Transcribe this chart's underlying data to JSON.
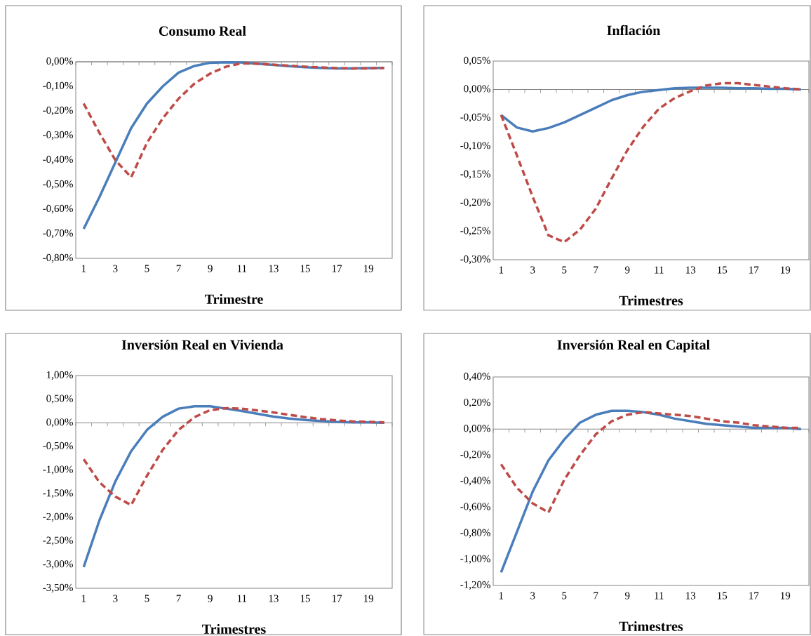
{
  "chart_data": [
    {
      "type": "line",
      "title": "Consumo Real",
      "xlabel": "Trimestre",
      "categories": [
        "1",
        null,
        "3",
        null,
        "5",
        null,
        "7",
        null,
        "9",
        null,
        "11",
        null,
        "13",
        null,
        "15",
        null,
        "17",
        null,
        "19",
        null
      ],
      "ylim": [
        -0.8,
        0
      ],
      "yticks": [
        {
          "value": 0,
          "label": "0,00%"
        },
        {
          "value": -0.1,
          "label": "-0,10%"
        },
        {
          "value": -0.2,
          "label": "-0,20%"
        },
        {
          "value": -0.3,
          "label": "-0,30%"
        },
        {
          "value": -0.4,
          "label": "-0,40%"
        },
        {
          "value": -0.5,
          "label": "-0,50%"
        },
        {
          "value": -0.6,
          "label": "-0,60%"
        },
        {
          "value": -0.7,
          "label": "-0,70%"
        },
        {
          "value": -0.8,
          "label": "-0,80%"
        }
      ],
      "series": [
        {
          "color": "#4a7ebb",
          "line_style": "solid",
          "values": [
            -0.68,
            -0.55,
            -0.41,
            -0.27,
            -0.17,
            -0.1,
            -0.044,
            -0.017,
            -0.004,
            -0.002,
            -0.003,
            -0.008,
            -0.013,
            -0.018,
            -0.022,
            -0.025,
            -0.027,
            -0.027,
            -0.026,
            -0.025
          ]
        },
        {
          "color": "#be4b48",
          "line_style": "dashed",
          "values": [
            -0.17,
            -0.29,
            -0.4,
            -0.47,
            -0.33,
            -0.23,
            -0.15,
            -0.089,
            -0.048,
            -0.02,
            -0.006,
            -0.008,
            -0.012,
            -0.016,
            -0.02,
            -0.023,
            -0.026,
            -0.027,
            -0.027,
            -0.025
          ]
        }
      ]
    },
    {
      "type": "line",
      "title": "Inflación",
      "xlabel": "Trimestres",
      "categories": [
        "1",
        null,
        "3",
        null,
        "5",
        null,
        "7",
        null,
        "9",
        null,
        "11",
        null,
        "13",
        null,
        "15",
        null,
        "17",
        null,
        "19",
        null
      ],
      "ylim": [
        -0.3,
        0.05
      ],
      "yticks": [
        {
          "value": 0.05,
          "label": "0,05%"
        },
        {
          "value": 0,
          "label": "0,00%"
        },
        {
          "value": -0.05,
          "label": "-0,05%"
        },
        {
          "value": -0.1,
          "label": "-0,10%"
        },
        {
          "value": -0.15,
          "label": "-0,15%"
        },
        {
          "value": -0.2,
          "label": "-0,20%"
        },
        {
          "value": -0.25,
          "label": "-0,25%"
        },
        {
          "value": -0.3,
          "label": "-0,30%"
        }
      ],
      "series": [
        {
          "color": "#4a7ebb",
          "line_style": "solid",
          "values": [
            -0.045,
            -0.067,
            -0.074,
            -0.068,
            -0.058,
            -0.045,
            -0.032,
            -0.019,
            -0.01,
            -0.004,
            -0.001,
            0.002,
            0.003,
            0.003,
            0.003,
            0.002,
            0.002,
            0.001,
            0.001,
            0
          ]
        },
        {
          "color": "#be4b48",
          "line_style": "dashed",
          "values": [
            -0.045,
            -0.116,
            -0.189,
            -0.257,
            -0.269,
            -0.247,
            -0.21,
            -0.157,
            -0.107,
            -0.066,
            -0.034,
            -0.015,
            -0.003,
            0.007,
            0.011,
            0.011,
            0.008,
            0.005,
            0.002,
            0
          ]
        }
      ]
    },
    {
      "type": "line",
      "title": "Inversión Real en Vivienda",
      "xlabel": "Trimestres",
      "categories": [
        "1",
        null,
        "3",
        null,
        "5",
        null,
        "7",
        null,
        "9",
        null,
        "11",
        null,
        "13",
        null,
        "15",
        null,
        "17",
        null,
        "19",
        null
      ],
      "ylim": [
        -3.5,
        1
      ],
      "yticks": [
        {
          "value": 1,
          "label": "1,00%"
        },
        {
          "value": 0.5,
          "label": "0,50%"
        },
        {
          "value": 0,
          "label": "0,00%"
        },
        {
          "value": -0.5,
          "label": "-0,50%"
        },
        {
          "value": -1,
          "label": "-1,00%"
        },
        {
          "value": -1.5,
          "label": "-1,50%"
        },
        {
          "value": -2,
          "label": "-2,00%"
        },
        {
          "value": -2.5,
          "label": "-2,50%"
        },
        {
          "value": -3,
          "label": "-3,00%"
        },
        {
          "value": -3.5,
          "label": "-3,50%"
        }
      ],
      "series": [
        {
          "color": "#4a7ebb",
          "line_style": "solid",
          "values": [
            -3.05,
            -2.06,
            -1.24,
            -0.6,
            -0.15,
            0.13,
            0.3,
            0.35,
            0.35,
            0.3,
            0.25,
            0.19,
            0.13,
            0.09,
            0.06,
            0.04,
            0.02,
            0.01,
            0.01,
            0
          ]
        },
        {
          "color": "#be4b48",
          "line_style": "dashed",
          "values": [
            -0.77,
            -1.26,
            -1.56,
            -1.74,
            -1.12,
            -0.57,
            -0.15,
            0.12,
            0.27,
            0.31,
            0.3,
            0.26,
            0.22,
            0.17,
            0.12,
            0.08,
            0.05,
            0.03,
            0.02,
            0.01
          ]
        }
      ]
    },
    {
      "type": "line",
      "title": "Inversión Real en Capital",
      "xlabel": "Trimestres",
      "categories": [
        "1",
        null,
        "3",
        null,
        "5",
        null,
        "7",
        null,
        "9",
        null,
        "11",
        null,
        "13",
        null,
        "15",
        null,
        "17",
        null,
        "19",
        null
      ],
      "ylim": [
        -1.2,
        0.4
      ],
      "yticks": [
        {
          "value": 0.4,
          "label": "0,40%"
        },
        {
          "value": 0.2,
          "label": "0,20%"
        },
        {
          "value": 0,
          "label": "0,00%"
        },
        {
          "value": -0.2,
          "label": "-0,20%"
        },
        {
          "value": -0.4,
          "label": "-0,40%"
        },
        {
          "value": -0.6,
          "label": "-0,60%"
        },
        {
          "value": -0.8,
          "label": "-0,80%"
        },
        {
          "value": -1,
          "label": "-1,00%"
        },
        {
          "value": -1.2,
          "label": "-1,20%"
        }
      ],
      "series": [
        {
          "color": "#4a7ebb",
          "line_style": "solid",
          "values": [
            -1.1,
            -0.79,
            -0.48,
            -0.24,
            -0.08,
            0.05,
            0.11,
            0.14,
            0.14,
            0.13,
            0.11,
            0.08,
            0.06,
            0.04,
            0.03,
            0.02,
            0.01,
            0.01,
            0.01,
            0
          ]
        },
        {
          "color": "#be4b48",
          "line_style": "dashed",
          "values": [
            -0.27,
            -0.45,
            -0.57,
            -0.64,
            -0.39,
            -0.2,
            -0.04,
            0.06,
            0.11,
            0.13,
            0.12,
            0.11,
            0.1,
            0.08,
            0.06,
            0.05,
            0.03,
            0.02,
            0.01,
            0.01
          ]
        }
      ]
    }
  ]
}
